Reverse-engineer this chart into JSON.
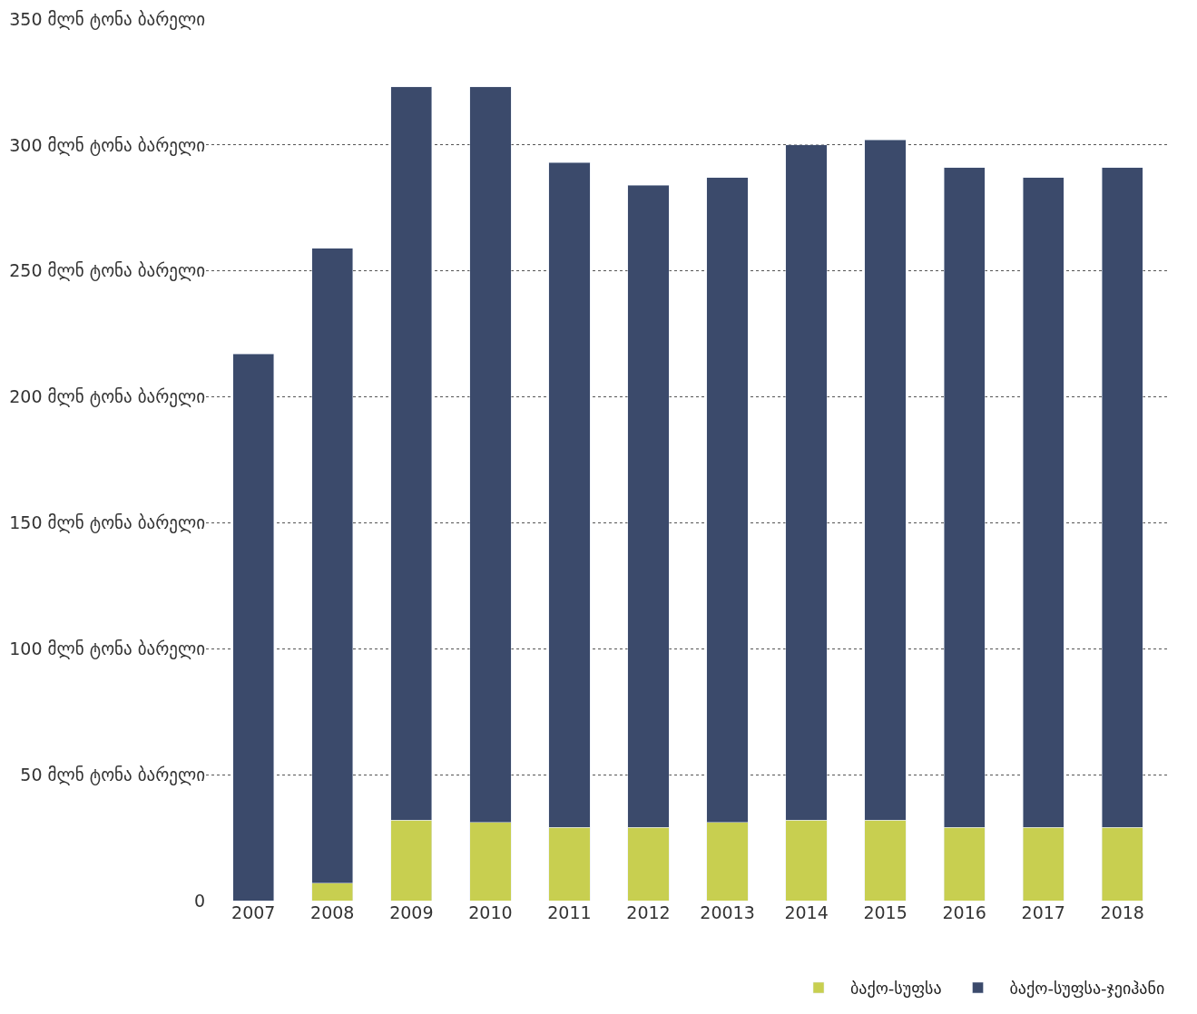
{
  "chart_data": {
    "type": "bar",
    "stacked": true,
    "categories": [
      "2007",
      "2008",
      "2009",
      "2010",
      "2011",
      "2012",
      "20013",
      "2014",
      "2015",
      "2016",
      "2017",
      "2018"
    ],
    "series": [
      {
        "name": "ბაქო-სუფსა",
        "color": "#c8cf50",
        "values": [
          0,
          7,
          32,
          31,
          29,
          29,
          31,
          32,
          32,
          29,
          29,
          29
        ]
      },
      {
        "name": "ბაქო-სუფსა-ჯეიჰანი",
        "color": "#3b4a6b",
        "values": [
          217,
          252,
          291,
          292,
          264,
          255,
          256,
          268,
          270,
          262,
          258,
          262
        ]
      }
    ],
    "ylim": [
      0,
      350
    ],
    "yticks": [
      0,
      {
        "value": 50,
        "label": "50 მლნ ტონა ბარელი"
      },
      {
        "value": 100,
        "label": "100 მლნ ტონა ბარელი"
      },
      {
        "value": 150,
        "label": "150 მლნ ტონა ბარელი"
      },
      {
        "value": 200,
        "label": "200 მლნ ტონა ბარელი"
      },
      {
        "value": 250,
        "label": "250 მლნ ტონა ბარელი"
      },
      {
        "value": 300,
        "label": "300 მლნ ტონა ბარელი"
      },
      {
        "value": 350,
        "label": "350 მლნ ტონა ბარელი"
      }
    ],
    "grid": "y",
    "legend": "bottom right"
  }
}
